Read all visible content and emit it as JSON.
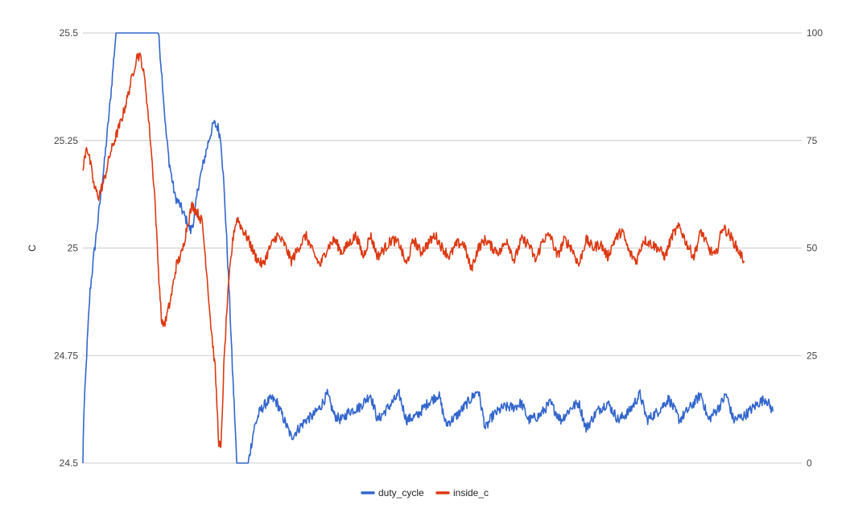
{
  "chart_data": {
    "type": "line",
    "title": "",
    "xlabel": "",
    "ylabel": "C",
    "ylabel_right": "",
    "y_left": {
      "min": 24.5,
      "max": 25.5,
      "ticks": [
        "25.5",
        "25.25",
        "25",
        "24.75",
        "24.5"
      ]
    },
    "y_right": {
      "min": 0,
      "max": 100,
      "ticks": [
        "100",
        "75",
        "50",
        "25",
        "0"
      ]
    },
    "x_range": [
      0,
      100
    ],
    "grid": "horizontal",
    "legend": {
      "position": "bottom"
    },
    "series": [
      {
        "name": "duty_cycle",
        "axis": "right",
        "color": "#3366cc",
        "noise": 1.2,
        "points": [
          [
            0,
            0
          ],
          [
            0.1,
            10
          ],
          [
            0.6,
            28
          ],
          [
            1,
            40
          ],
          [
            1.5,
            48
          ],
          [
            2.2,
            58
          ],
          [
            3,
            70
          ],
          [
            3.8,
            84
          ],
          [
            4.6,
            100
          ],
          [
            10.5,
            100
          ],
          [
            11,
            90
          ],
          [
            11.5,
            78
          ],
          [
            12,
            70
          ],
          [
            12.8,
            62
          ],
          [
            13.5,
            60
          ],
          [
            14.5,
            56
          ],
          [
            15,
            54
          ],
          [
            15.5,
            57
          ],
          [
            16,
            64
          ],
          [
            16.8,
            70
          ],
          [
            17.5,
            75
          ],
          [
            18.2,
            79
          ],
          [
            18.8,
            78
          ],
          [
            19.2,
            75
          ],
          [
            19.6,
            65
          ],
          [
            20,
            52
          ],
          [
            20.4,
            38
          ],
          [
            20.8,
            22
          ],
          [
            21.2,
            8
          ],
          [
            21.4,
            0
          ],
          [
            21.8,
            0
          ],
          [
            23,
            0
          ],
          [
            23.3,
            3
          ],
          [
            23.8,
            8
          ],
          [
            24.6,
            12
          ],
          [
            25.5,
            14
          ],
          [
            26.3,
            15
          ],
          [
            27,
            14
          ],
          [
            28,
            10
          ],
          [
            29,
            6
          ],
          [
            30,
            8
          ],
          [
            31,
            10
          ],
          [
            32,
            11
          ],
          [
            33,
            13
          ],
          [
            34,
            16
          ],
          [
            35,
            11
          ],
          [
            36,
            10
          ],
          [
            37,
            12
          ],
          [
            38.5,
            13
          ],
          [
            40,
            16
          ],
          [
            41,
            10
          ],
          [
            42,
            12
          ],
          [
            43,
            14
          ],
          [
            44,
            16
          ],
          [
            45,
            10
          ],
          [
            46.5,
            11
          ],
          [
            48,
            14
          ],
          [
            49.5,
            16
          ],
          [
            50.5,
            9
          ],
          [
            52,
            11
          ],
          [
            53.5,
            14
          ],
          [
            55,
            17
          ],
          [
            56,
            8
          ],
          [
            57,
            11
          ],
          [
            58.5,
            13
          ],
          [
            60,
            13
          ],
          [
            61,
            14
          ],
          [
            62,
            10
          ],
          [
            63.5,
            11
          ],
          [
            65,
            14
          ],
          [
            66.5,
            10
          ],
          [
            68,
            13
          ],
          [
            69,
            14
          ],
          [
            70,
            8
          ],
          [
            71.5,
            12
          ],
          [
            73,
            14
          ],
          [
            74.5,
            10
          ],
          [
            76,
            12
          ],
          [
            77.5,
            16
          ],
          [
            78.5,
            10
          ],
          [
            80,
            12
          ],
          [
            81.5,
            15
          ],
          [
            83,
            10
          ],
          [
            84.5,
            13
          ],
          [
            86,
            16
          ],
          [
            87,
            10
          ],
          [
            88.5,
            13
          ],
          [
            89.5,
            16
          ],
          [
            90.5,
            10
          ],
          [
            92,
            11
          ],
          [
            94,
            14
          ],
          [
            95,
            15
          ],
          [
            96,
            12
          ]
        ]
      },
      {
        "name": "inside_c",
        "axis": "left",
        "color": "#dc3912",
        "noise": 0.012,
        "points": [
          [
            0,
            25.18
          ],
          [
            0.5,
            25.24
          ],
          [
            1,
            25.2
          ],
          [
            1.6,
            25.14
          ],
          [
            2.2,
            25.12
          ],
          [
            3,
            25.16
          ],
          [
            3.8,
            25.22
          ],
          [
            4.6,
            25.26
          ],
          [
            5.4,
            25.3
          ],
          [
            6.2,
            25.35
          ],
          [
            7,
            25.41
          ],
          [
            7.6,
            25.45
          ],
          [
            8.1,
            25.44
          ],
          [
            8.7,
            25.38
          ],
          [
            9.4,
            25.25
          ],
          [
            10,
            25.12
          ],
          [
            10.5,
            24.95
          ],
          [
            11,
            24.82
          ],
          [
            11.5,
            24.83
          ],
          [
            12.2,
            24.88
          ],
          [
            13,
            24.96
          ],
          [
            13.8,
            24.99
          ],
          [
            14.6,
            25.06
          ],
          [
            15.2,
            25.1
          ],
          [
            16,
            25.08
          ],
          [
            16.6,
            25.06
          ],
          [
            17.2,
            24.95
          ],
          [
            17.8,
            24.82
          ],
          [
            18.4,
            24.72
          ],
          [
            18.9,
            24.55
          ],
          [
            19.2,
            24.53
          ],
          [
            19.6,
            24.72
          ],
          [
            20,
            24.85
          ],
          [
            20.5,
            24.96
          ],
          [
            21,
            25.04
          ],
          [
            21.5,
            25.07
          ],
          [
            22,
            25.05
          ],
          [
            23,
            25.02
          ],
          [
            24,
            24.98
          ],
          [
            25,
            24.96
          ],
          [
            26,
            25.0
          ],
          [
            27,
            25.03
          ],
          [
            28,
            25.01
          ],
          [
            29,
            24.97
          ],
          [
            30,
            25.0
          ],
          [
            31,
            25.03
          ],
          [
            32,
            24.99
          ],
          [
            33,
            24.96
          ],
          [
            34,
            25.0
          ],
          [
            35,
            25.02
          ],
          [
            36,
            24.99
          ],
          [
            37,
            25.01
          ],
          [
            38,
            25.03
          ],
          [
            39,
            24.98
          ],
          [
            40,
            25.03
          ],
          [
            41,
            24.98
          ],
          [
            42,
            25.0
          ],
          [
            43,
            25.02
          ],
          [
            44,
            25.01
          ],
          [
            45,
            24.96
          ],
          [
            46,
            25.02
          ],
          [
            47,
            24.99
          ],
          [
            48,
            25.01
          ],
          [
            49,
            25.03
          ],
          [
            50,
            25.0
          ],
          [
            51,
            24.98
          ],
          [
            52,
            25.01
          ],
          [
            53,
            25.01
          ],
          [
            54,
            24.95
          ],
          [
            55,
            25.0
          ],
          [
            56,
            25.02
          ],
          [
            57,
            25.0
          ],
          [
            58,
            24.99
          ],
          [
            59,
            25.02
          ],
          [
            60,
            24.97
          ],
          [
            61,
            25.02
          ],
          [
            62,
            25.01
          ],
          [
            63,
            24.97
          ],
          [
            64,
            25.02
          ],
          [
            65,
            25.03
          ],
          [
            66,
            24.98
          ],
          [
            67,
            25.02
          ],
          [
            68,
            25.0
          ],
          [
            69,
            24.96
          ],
          [
            70,
            25.02
          ],
          [
            71,
            25.0
          ],
          [
            72,
            25.01
          ],
          [
            73,
            24.98
          ],
          [
            74,
            25.02
          ],
          [
            75,
            25.04
          ],
          [
            76,
            24.99
          ],
          [
            77,
            24.97
          ],
          [
            78,
            25.02
          ],
          [
            79,
            25.01
          ],
          [
            80,
            25.0
          ],
          [
            81,
            24.98
          ],
          [
            82,
            25.03
          ],
          [
            83,
            25.05
          ],
          [
            84,
            25.01
          ],
          [
            85,
            24.98
          ],
          [
            86,
            25.04
          ],
          [
            87,
            25.0
          ],
          [
            88,
            24.98
          ],
          [
            89,
            25.05
          ],
          [
            90,
            25.03
          ],
          [
            91,
            25.0
          ],
          [
            92,
            24.97
          ]
        ]
      }
    ]
  }
}
